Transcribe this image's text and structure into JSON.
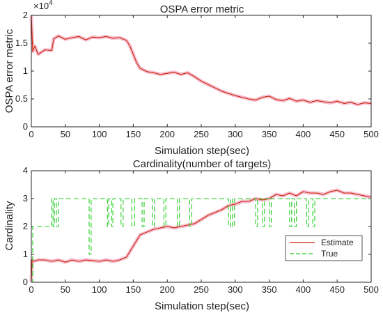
{
  "chart_data": [
    {
      "type": "line",
      "title": "OSPA error metric",
      "xlabel": "Simulation step(sec)",
      "ylabel": "OSPA error metric",
      "y_exponent_label": "×10",
      "y_exponent_power": "4",
      "xlim": [
        0,
        500
      ],
      "ylim": [
        0,
        20000
      ],
      "xticks": [
        0,
        50,
        100,
        150,
        200,
        250,
        300,
        350,
        400,
        450,
        500
      ],
      "yticks": [
        0,
        5000,
        10000,
        15000,
        20000
      ],
      "ytick_labels": [
        "0",
        "0.5",
        "1",
        "1.5",
        "2"
      ],
      "grid": false,
      "series": [
        {
          "color": "#cc2200",
          "x": [
            0,
            2,
            5,
            10,
            20,
            30,
            33,
            40,
            50,
            60,
            70,
            80,
            90,
            100,
            110,
            120,
            130,
            140,
            145,
            150,
            155,
            160,
            170,
            180,
            190,
            200,
            210,
            220,
            230,
            240,
            250,
            260,
            270,
            280,
            290,
            300,
            310,
            320,
            330,
            340,
            350,
            360,
            370,
            380,
            390,
            400,
            410,
            420,
            430,
            440,
            450,
            460,
            470,
            480,
            490,
            500
          ],
          "y": [
            20000,
            13500,
            14500,
            13000,
            13800,
            13700,
            15800,
            16300,
            15700,
            16000,
            16200,
            15600,
            16100,
            16000,
            16200,
            15900,
            16000,
            15500,
            14500,
            13000,
            11500,
            10500,
            9900,
            9700,
            9400,
            9600,
            9800,
            9400,
            9700,
            9000,
            8200,
            7600,
            7000,
            6400,
            6000,
            5600,
            5300,
            5000,
            4800,
            5300,
            5500,
            4900,
            4700,
            5100,
            4600,
            4800,
            4400,
            4700,
            4500,
            4300,
            4600,
            4200,
            4400,
            4000,
            4300,
            4200
          ]
        }
      ]
    },
    {
      "type": "line",
      "title": "Cardinality(number of targets)",
      "xlabel": "Simulation step(sec)",
      "ylabel": "Cardinality",
      "xlim": [
        0,
        500
      ],
      "ylim": [
        0,
        4
      ],
      "xticks": [
        0,
        50,
        100,
        150,
        200,
        250,
        300,
        350,
        400,
        450,
        500
      ],
      "yticks": [
        0,
        1,
        2,
        3,
        4
      ],
      "grid": false,
      "legend_position": "bottom-right",
      "series": [
        {
          "name": "Estimate",
          "color": "#cc2200",
          "style": "solid",
          "x": [
            0,
            1,
            3,
            10,
            20,
            30,
            40,
            50,
            60,
            70,
            80,
            90,
            100,
            110,
            120,
            130,
            140,
            150,
            155,
            160,
            170,
            180,
            190,
            200,
            210,
            220,
            230,
            240,
            250,
            260,
            270,
            280,
            290,
            300,
            310,
            320,
            330,
            340,
            350,
            360,
            370,
            380,
            390,
            400,
            410,
            420,
            430,
            440,
            450,
            460,
            470,
            480,
            490,
            500
          ],
          "y": [
            0.02,
            0.8,
            0.75,
            0.8,
            0.8,
            0.75,
            0.8,
            0.72,
            0.8,
            0.75,
            0.8,
            0.78,
            0.75,
            0.8,
            0.75,
            0.8,
            0.9,
            1.3,
            1.5,
            1.7,
            1.8,
            1.9,
            1.95,
            2.0,
            1.95,
            2.0,
            2.05,
            2.1,
            2.25,
            2.4,
            2.5,
            2.6,
            2.75,
            2.8,
            2.9,
            2.9,
            3.0,
            2.95,
            3.0,
            3.15,
            3.1,
            3.2,
            3.1,
            3.25,
            3.2,
            3.2,
            3.15,
            3.25,
            3.3,
            3.2,
            3.2,
            3.15,
            3.1,
            3.05
          ]
        },
        {
          "name": "True",
          "color": "#22cc22",
          "style": "dashed",
          "x": [
            0,
            2,
            2,
            30,
            30,
            32,
            32,
            34,
            34,
            37,
            37,
            40,
            40,
            85,
            85,
            88,
            88,
            112,
            112,
            114,
            114,
            118,
            118,
            120,
            120,
            132,
            132,
            135,
            135,
            148,
            148,
            152,
            152,
            163,
            163,
            166,
            166,
            178,
            178,
            181,
            181,
            195,
            195,
            198,
            198,
            215,
            215,
            218,
            218,
            233,
            233,
            236,
            236,
            290,
            290,
            293,
            293,
            296,
            296,
            299,
            299,
            330,
            330,
            333,
            333,
            340,
            340,
            343,
            343,
            350,
            350,
            353,
            353,
            380,
            380,
            383,
            383,
            387,
            387,
            390,
            390,
            405,
            405,
            408,
            408,
            414,
            414,
            417,
            417,
            500
          ],
          "y": [
            0,
            0,
            2,
            2,
            3,
            3,
            2,
            2,
            3,
            3,
            2,
            2,
            3,
            3,
            1,
            1,
            3,
            3,
            2,
            2,
            3,
            3,
            2,
            2,
            3,
            3,
            2,
            2,
            3,
            3,
            2,
            2,
            3,
            3,
            2,
            2,
            3,
            3,
            2,
            2,
            3,
            3,
            2,
            2,
            3,
            3,
            2,
            2,
            3,
            3,
            2,
            2,
            3,
            3,
            2,
            2,
            3,
            3,
            2,
            2,
            3,
            3,
            2,
            2,
            3,
            3,
            2,
            2,
            3,
            3,
            2,
            2,
            3,
            3,
            2,
            2,
            3,
            3,
            2,
            2,
            3,
            3,
            2,
            2,
            3,
            3,
            2,
            2,
            3,
            3
          ]
        }
      ]
    }
  ]
}
